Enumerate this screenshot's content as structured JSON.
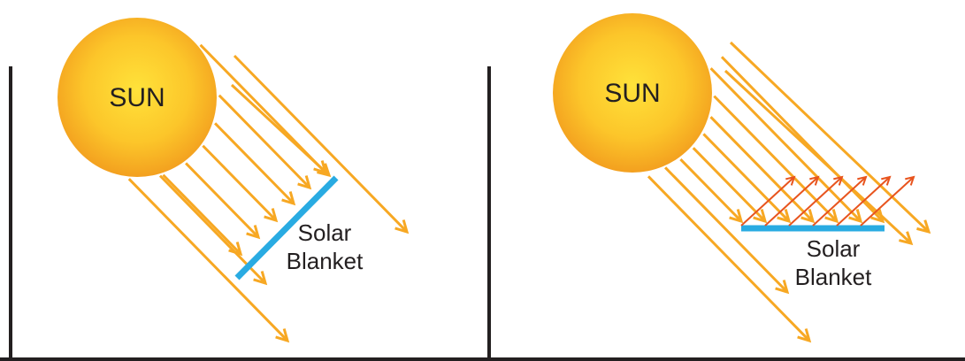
{
  "panels": [
    {
      "sun": "SUN",
      "label": [
        "Solar",
        "Blanket"
      ]
    },
    {
      "sun": "SUN",
      "label": [
        "Solar",
        "Blanket"
      ]
    }
  ]
}
